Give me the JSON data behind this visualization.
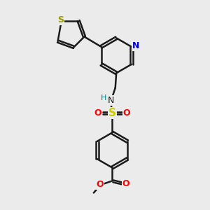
{
  "bg_color": "#ebebeb",
  "bond_color": "#1a1a1a",
  "bond_width": 1.8,
  "S_color": "#999900",
  "N_color": "#0000cc",
  "O_color": "#ff0000",
  "H_color": "#008080",
  "fig_size": [
    3.0,
    3.0
  ],
  "dpi": 100,
  "xlim": [
    0,
    10
  ],
  "ylim": [
    0,
    10
  ]
}
